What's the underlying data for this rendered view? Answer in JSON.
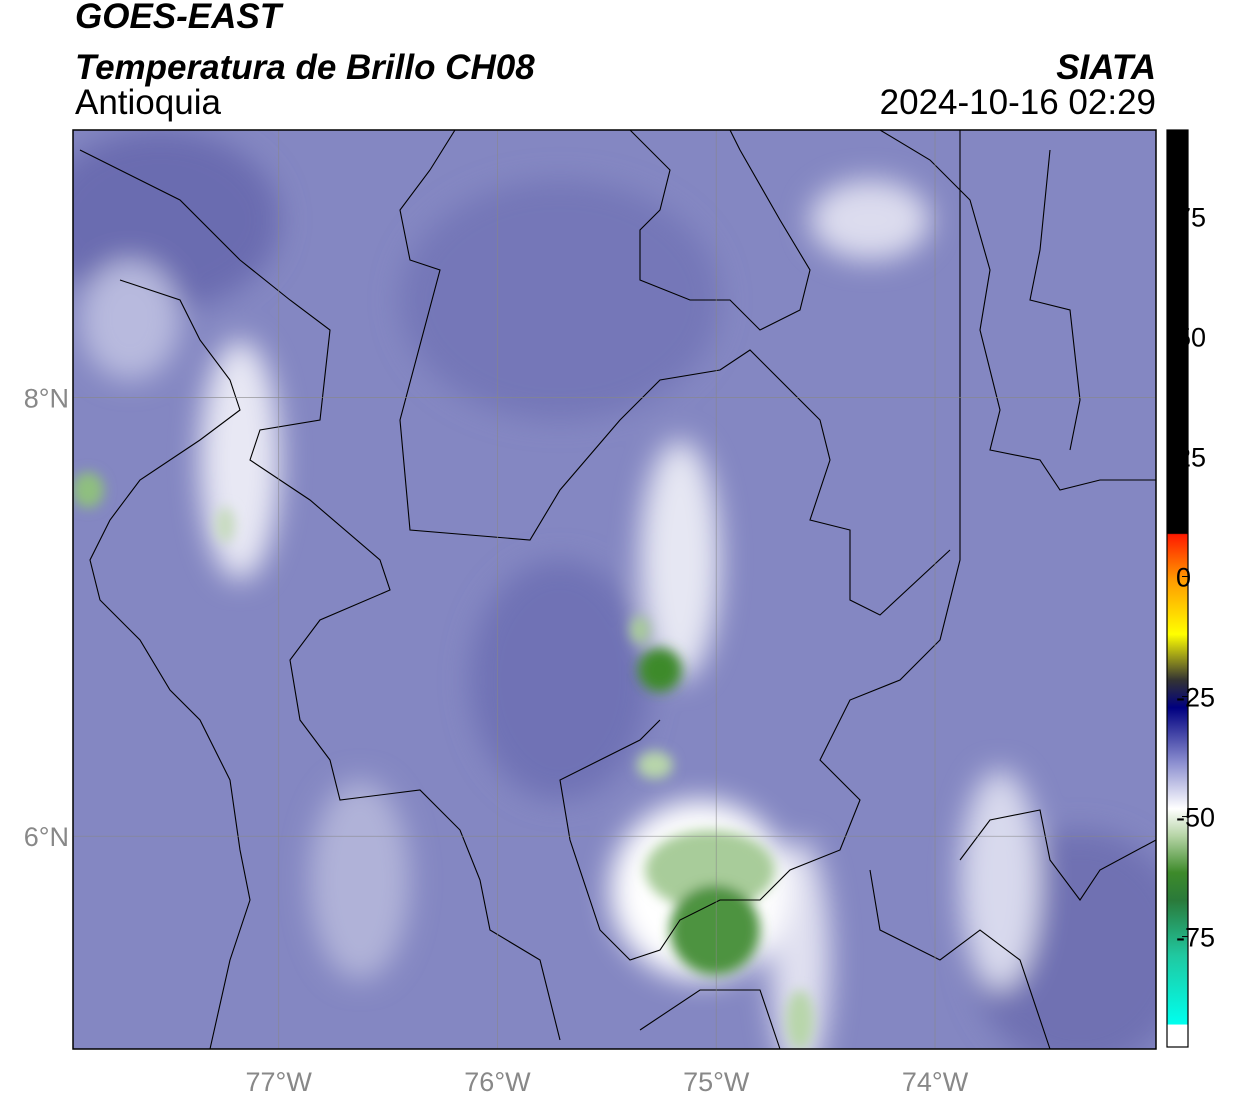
{
  "map": {
    "title": "GOES-EAST",
    "subtitle": "Temperatura de Brillo CH08",
    "region": "Antioquia",
    "source": "SIATA",
    "timestamp": "2024-10-16 02:29",
    "xlim": [
      -77.94,
      -72.99
    ],
    "ylim": [
      5.03,
      9.22
    ],
    "xticks": [
      {
        "value": -77,
        "label": "77°W"
      },
      {
        "value": -76,
        "label": "76°W"
      },
      {
        "value": -75,
        "label": "75°W"
      },
      {
        "value": -74,
        "label": "74°W"
      }
    ],
    "yticks": [
      {
        "value": 8,
        "label": "8°N"
      },
      {
        "value": 6,
        "label": "6°N"
      }
    ],
    "colorbar": {
      "lim": [
        -98,
        93
      ],
      "ticks": [
        75,
        50,
        25,
        0,
        -25,
        -50,
        -75
      ]
    }
  }
}
